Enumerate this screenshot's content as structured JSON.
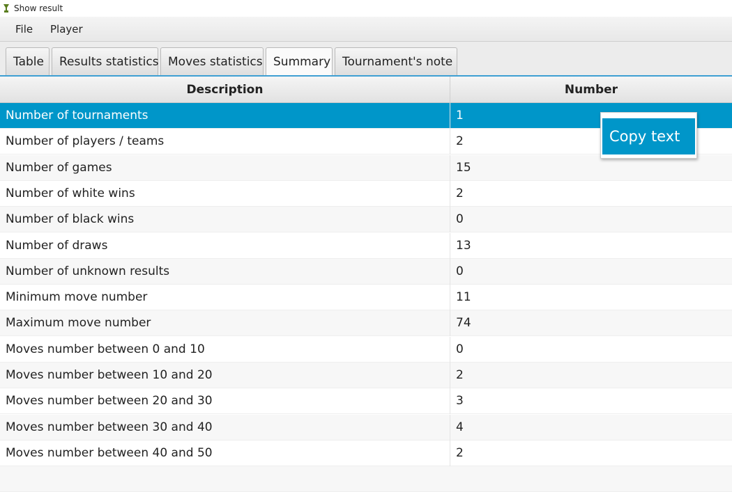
{
  "window": {
    "title": "Show result"
  },
  "menu": {
    "items": [
      "File",
      "Player"
    ]
  },
  "tabs": {
    "items": [
      "Table",
      "Results statistics",
      "Moves statistics",
      "Summary",
      "Tournament's note"
    ]
  },
  "table": {
    "columns": [
      "Description",
      "Number"
    ],
    "rows": [
      [
        "Number of tournaments",
        "1"
      ],
      [
        "Number of players / teams",
        "2"
      ],
      [
        "Number of games",
        "15"
      ],
      [
        "Number of white wins",
        "2"
      ],
      [
        "Number of black wins",
        "0"
      ],
      [
        "Number of draws",
        "13"
      ],
      [
        "Number of unknown results",
        "0"
      ],
      [
        "Minimum move number",
        "11"
      ],
      [
        "Maximum move number",
        "74"
      ],
      [
        "Moves number between 0 and 10",
        "0"
      ],
      [
        "Moves number between 10 and 20",
        "2"
      ],
      [
        "Moves number between 20 and 30",
        "3"
      ],
      [
        "Moves number between 30 and 40",
        "4"
      ],
      [
        "Moves number between 40 and 50",
        "2"
      ]
    ]
  },
  "context_menu": {
    "items": [
      "Copy text"
    ]
  }
}
